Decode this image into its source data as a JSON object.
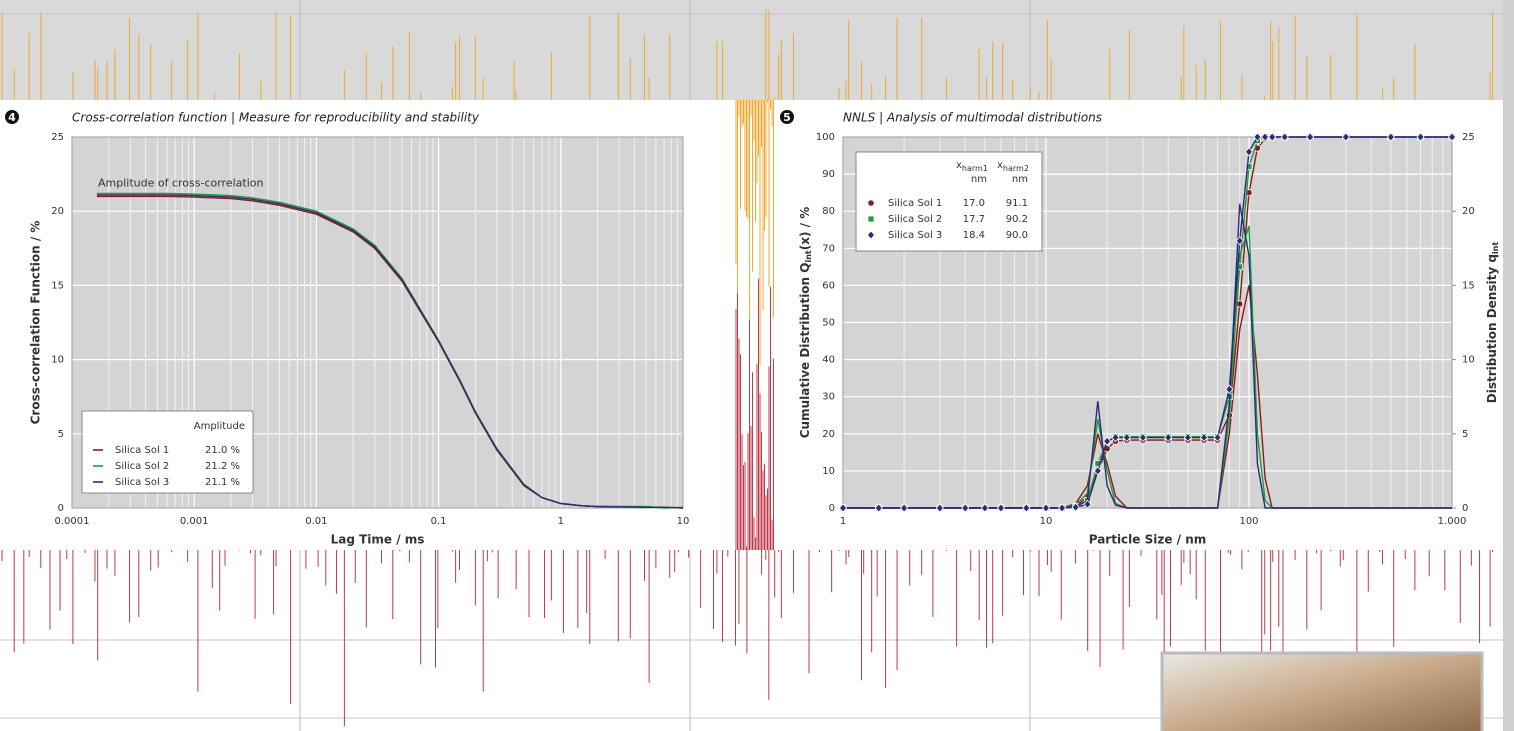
{
  "chart_data": [
    {
      "type": "line",
      "badge": "4",
      "title": "Cross-correlation function | Measure for reproducibility and stability",
      "x_label": "Lag Time / ms",
      "y_label": "Cross-correlation Function / %",
      "annotation": "Amplitude of cross-correlation",
      "x_scale": "log",
      "grid": true,
      "legend_position": "lower left",
      "legend_header": "Amplitude",
      "xlim": [
        0.0001,
        10
      ],
      "xticks": [
        0.0001,
        0.001,
        0.01,
        0.1,
        1,
        10
      ],
      "ylim": [
        0,
        25
      ],
      "yticks": [
        0,
        5,
        10,
        15,
        20,
        25
      ],
      "x": [
        0.00016,
        0.0003,
        0.0006,
        0.001,
        0.002,
        0.003,
        0.005,
        0.01,
        0.02,
        0.03,
        0.05,
        0.1,
        0.15,
        0.2,
        0.3,
        0.5,
        0.7,
        1,
        1.5,
        2,
        3,
        5,
        7,
        10
      ],
      "series": [
        {
          "name": "Silica Sol 1",
          "color": "#8b1a1a",
          "amplitude": "21.0 %",
          "values": [
            21.0,
            21.0,
            21.0,
            20.95,
            20.85,
            20.7,
            20.4,
            19.8,
            18.6,
            17.5,
            15.3,
            11.2,
            8.5,
            6.4,
            3.9,
            1.5,
            0.7,
            0.3,
            0.15,
            0.1,
            0.08,
            0.05,
            0.05,
            0.0
          ]
        },
        {
          "name": "Silica Sol 2",
          "color": "#1e9e3e",
          "amplitude": "21.2 %",
          "values": [
            21.2,
            21.2,
            21.2,
            21.15,
            21.05,
            20.9,
            20.6,
            20.0,
            18.8,
            17.7,
            15.5,
            11.3,
            8.6,
            6.5,
            4.0,
            1.6,
            0.7,
            0.3,
            0.15,
            0.1,
            0.1,
            0.1,
            0.0,
            0.05
          ]
        },
        {
          "name": "Silica Sol 3",
          "color": "#2b2b7a",
          "amplitude": "21.1 %",
          "values": [
            21.1,
            21.1,
            21.1,
            21.05,
            20.95,
            20.8,
            20.5,
            19.9,
            18.7,
            17.6,
            15.4,
            11.25,
            8.55,
            6.45,
            3.95,
            1.55,
            0.7,
            0.3,
            0.15,
            0.1,
            0.08,
            0.05,
            0.05,
            0.0
          ]
        }
      ]
    },
    {
      "type": "line",
      "badge": "5",
      "title": "NNLS | Analysis of multimodal distributions",
      "x_label": "Particle Size / nm",
      "y_label": [
        "Cumulative Distribution Q",
        "int",
        "(x) / %"
      ],
      "y2_label": [
        "Distribution Density q",
        "int"
      ],
      "x_scale": "log",
      "grid": true,
      "legend_position": "upper left",
      "legend_headers": [
        {
          "main": "x",
          "sub": "harm1",
          "unit": "nm"
        },
        {
          "main": "x",
          "sub": "harm2",
          "unit": "nm"
        }
      ],
      "xlim": [
        1,
        1000
      ],
      "xticks": [
        1,
        10,
        100,
        {
          "value": 1000,
          "label": "1.000"
        }
      ],
      "ylim": [
        0,
        100
      ],
      "yticks": [
        0,
        10,
        20,
        30,
        40,
        50,
        60,
        70,
        80,
        90,
        100
      ],
      "y2lim": [
        0,
        25
      ],
      "y2ticks": [
        0,
        5,
        10,
        15,
        20,
        25
      ],
      "x": [
        1,
        1.5,
        2,
        3,
        4,
        5,
        6,
        8,
        10,
        12,
        14,
        16,
        18,
        20,
        22,
        25,
        30,
        40,
        50,
        60,
        70,
        80,
        90,
        100,
        110,
        120,
        130,
        150,
        200,
        300,
        500,
        700,
        1000
      ],
      "series": [
        {
          "name": "Silica Sol 1",
          "color": "#8b1a1a",
          "marker": "circle",
          "x_harm1": "17.0",
          "x_harm2": "91.1",
          "density_axis": "y2",
          "values": [
            0,
            0,
            0,
            0,
            0,
            0,
            0,
            0,
            0,
            0,
            0.5,
            3,
            10,
            16,
            18,
            18.3,
            18.3,
            18.3,
            18.3,
            18.3,
            18.3,
            25,
            55,
            85,
            97,
            99.5,
            100,
            100,
            100,
            100,
            100,
            100,
            100
          ],
          "density": [
            0,
            0,
            0,
            0,
            0,
            0,
            0,
            0,
            0,
            0,
            0.3,
            1.5,
            5,
            3,
            0.8,
            0,
            0,
            0,
            0,
            0,
            0,
            5,
            12,
            15,
            9,
            2,
            0,
            0,
            0,
            0,
            0,
            0,
            0
          ]
        },
        {
          "name": "Silica Sol 2",
          "color": "#1e9e3e",
          "marker": "square",
          "x_harm1": "17.7",
          "x_harm2": "90.2",
          "density_axis": "y2",
          "values": [
            0,
            0,
            0,
            0,
            0,
            0,
            0,
            0,
            0,
            0,
            0.3,
            2,
            12,
            18,
            19.2,
            19.2,
            19.2,
            19.2,
            19.2,
            19.2,
            19.2,
            30,
            65,
            92,
            99,
            100,
            100,
            100,
            100,
            100,
            100,
            100,
            100
          ],
          "density": [
            0,
            0,
            0,
            0,
            0,
            0,
            0,
            0,
            0,
            0,
            0.2,
            1,
            6,
            2.5,
            0.3,
            0,
            0,
            0,
            0,
            0,
            0,
            6,
            17,
            19,
            5,
            0.5,
            0,
            0,
            0,
            0,
            0,
            0,
            0
          ]
        },
        {
          "name": "Silica Sol 3",
          "color": "#2b2b7a",
          "marker": "diamond",
          "x_harm1": "18.4",
          "x_harm2": "90.0",
          "density_axis": "y2",
          "values": [
            0,
            0,
            0,
            0,
            0,
            0,
            0,
            0,
            0,
            0,
            0.2,
            1,
            10,
            18,
            19,
            19,
            19,
            19,
            19,
            19,
            19,
            32,
            72,
            96,
            100,
            100,
            100,
            100,
            100,
            100,
            100,
            100,
            100
          ],
          "density": [
            0,
            0,
            0,
            0,
            0,
            0,
            0,
            0,
            0,
            0,
            0.1,
            0.5,
            7.2,
            1.5,
            0.2,
            0,
            0,
            0,
            0,
            0,
            0,
            7,
            20.5,
            17,
            3,
            0,
            0,
            0,
            0,
            0,
            0,
            0,
            0
          ]
        }
      ]
    }
  ]
}
